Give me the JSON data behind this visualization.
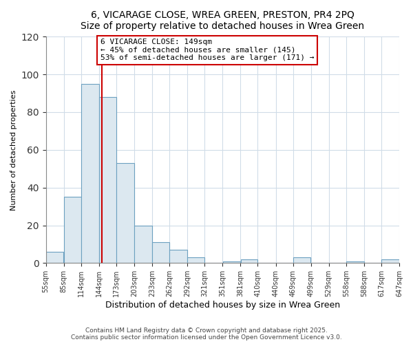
{
  "title": "6, VICARAGE CLOSE, WREA GREEN, PRESTON, PR4 2PQ",
  "subtitle": "Size of property relative to detached houses in Wrea Green",
  "xlabel": "Distribution of detached houses by size in Wrea Green",
  "ylabel": "Number of detached properties",
  "bar_color": "#dce8f0",
  "bar_edge_color": "#6ca0c0",
  "bin_edges": [
    55,
    85,
    114,
    144,
    173,
    203,
    233,
    262,
    292,
    321,
    351,
    381,
    410,
    440,
    469,
    499,
    529,
    558,
    588,
    617,
    647
  ],
  "bin_labels": [
    "55sqm",
    "85sqm",
    "114sqm",
    "144sqm",
    "173sqm",
    "203sqm",
    "233sqm",
    "262sqm",
    "292sqm",
    "321sqm",
    "351sqm",
    "381sqm",
    "410sqm",
    "440sqm",
    "469sqm",
    "499sqm",
    "529sqm",
    "558sqm",
    "588sqm",
    "617sqm",
    "647sqm"
  ],
  "counts": [
    6,
    35,
    95,
    88,
    53,
    20,
    11,
    7,
    3,
    0,
    1,
    2,
    0,
    0,
    3,
    0,
    0,
    1,
    0,
    2
  ],
  "vline_x": 149,
  "vline_color": "#cc0000",
  "ylim": [
    0,
    120
  ],
  "yticks": [
    0,
    20,
    40,
    60,
    80,
    100,
    120
  ],
  "annotation_line1": "6 VICARAGE CLOSE: 149sqm",
  "annotation_line2": "← 45% of detached houses are smaller (145)",
  "annotation_line3": "53% of semi-detached houses are larger (171) →",
  "annotation_box_color": "#ffffff",
  "annotation_box_edge": "#cc0000",
  "footer1": "Contains HM Land Registry data © Crown copyright and database right 2025.",
  "footer2": "Contains public sector information licensed under the Open Government Licence v3.0.",
  "bg_color": "#ffffff",
  "grid_color": "#d0dce8"
}
